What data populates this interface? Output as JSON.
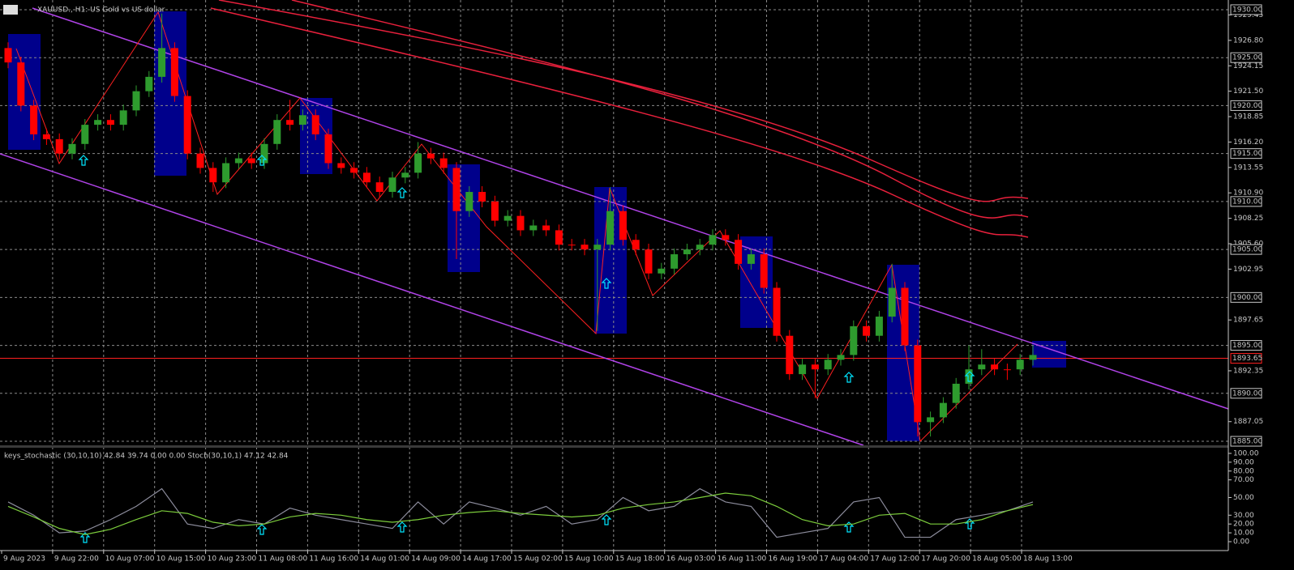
{
  "chart_data": {
    "type": "candlestick",
    "title": "XAUUSD., H1:  US Gold vs US dollar",
    "indicator_label": "keys_stochastic (30,10,10) 42.84 39.74 0.00 0.00 Stoch(30,10,1) 47.12 42.84",
    "up_color": "#2e9b2e",
    "down_color": "#ff0000",
    "ylim": [
      1884.58,
      1931.01
    ],
    "yticks": [
      {
        "value": 1929.45,
        "label": "1929.45"
      },
      {
        "value": 1926.8,
        "label": "1926.80"
      },
      {
        "value": 1924.15,
        "label": "1924.15"
      },
      {
        "value": 1921.5,
        "label": "1921.50"
      },
      {
        "value": 1918.85,
        "label": "1918.85"
      },
      {
        "value": 1916.2,
        "label": "1916.20"
      },
      {
        "value": 1913.55,
        "label": "1913.55"
      },
      {
        "value": 1910.9,
        "label": "1910.90"
      },
      {
        "value": 1908.25,
        "label": "1908.25"
      },
      {
        "value": 1905.6,
        "label": "1905.60"
      },
      {
        "value": 1902.95,
        "label": "1902.95"
      },
      {
        "value": 1897.65,
        "label": "1897.65"
      },
      {
        "value": 1892.35,
        "label": "1892.35"
      },
      {
        "value": 1887.05,
        "label": "1887.05"
      }
    ],
    "level_ticks": [
      {
        "value": 1930,
        "label": "1930.00"
      },
      {
        "value": 1925,
        "label": "1925.00"
      },
      {
        "value": 1920,
        "label": "1920.00"
      },
      {
        "value": 1915,
        "label": "1915.00"
      },
      {
        "value": 1910,
        "label": "1910.00"
      },
      {
        "value": 1905,
        "label": "1905.00"
      },
      {
        "value": 1900,
        "label": "1900.00"
      },
      {
        "value": 1895,
        "label": "1895.00"
      },
      {
        "value": 1890,
        "label": "1890.00"
      },
      {
        "value": 1885,
        "label": "1885.00"
      }
    ],
    "current_price": {
      "value": 1893.65,
      "label": "1893.65"
    },
    "time_labels": [
      "9 Aug 2023",
      "9 Aug 22:00",
      "10 Aug 07:00",
      "10 Aug 15:00",
      "10 Aug 23:00",
      "11 Aug 08:00",
      "11 Aug 16:00",
      "14 Aug 01:00",
      "14 Aug 09:00",
      "14 Aug 17:00",
      "15 Aug 02:00",
      "15 Aug 10:00",
      "15 Aug 18:00",
      "16 Aug 03:00",
      "16 Aug 11:00",
      "16 Aug 19:00",
      "17 Aug 04:00",
      "17 Aug 12:00",
      "17 Aug 20:00",
      "18 Aug 05:00",
      "18 Aug 13:00"
    ],
    "ohlc": [
      [
        1926,
        1926.6,
        1923.9,
        1924.5
      ],
      [
        1924.5,
        1925.1,
        1919.4,
        1920
      ],
      [
        1920,
        1920.6,
        1916.4,
        1917
      ],
      [
        1917,
        1917.6,
        1915.9,
        1916.5
      ],
      [
        1916.5,
        1917.1,
        1914.4,
        1915
      ],
      [
        1915,
        1916.6,
        1914.4,
        1916
      ],
      [
        1916,
        1918.6,
        1915.4,
        1918
      ],
      [
        1918,
        1919.1,
        1917.4,
        1918.5
      ],
      [
        1918.5,
        1919.1,
        1917.4,
        1918
      ],
      [
        1918,
        1920.1,
        1917.4,
        1919.5
      ],
      [
        1919.5,
        1922.1,
        1918.9,
        1921.5
      ],
      [
        1921.5,
        1923.6,
        1920.9,
        1923
      ],
      [
        1923,
        1929.6,
        1922.4,
        1926
      ],
      [
        1926,
        1926.6,
        1920.4,
        1921
      ],
      [
        1921,
        1921.6,
        1914.4,
        1915
      ],
      [
        1915,
        1915.6,
        1912.9,
        1913.5
      ],
      [
        1913.5,
        1914.1,
        1911,
        1912
      ],
      [
        1912,
        1914.6,
        1911.4,
        1914
      ],
      [
        1914,
        1915.1,
        1913.4,
        1914.5
      ],
      [
        1914.5,
        1915.1,
        1913.4,
        1914
      ],
      [
        1914,
        1916.6,
        1913.4,
        1916
      ],
      [
        1916,
        1919.1,
        1915.4,
        1918.5
      ],
      [
        1918.5,
        1920.6,
        1917.4,
        1918
      ],
      [
        1918,
        1919.6,
        1917.4,
        1919
      ],
      [
        1919,
        1919.6,
        1916.4,
        1917
      ],
      [
        1917,
        1917.6,
        1913.4,
        1914
      ],
      [
        1914,
        1914.6,
        1912.9,
        1913.5
      ],
      [
        1913.5,
        1914.1,
        1912.4,
        1913
      ],
      [
        1913,
        1913.6,
        1911.4,
        1912
      ],
      [
        1912,
        1912.6,
        1910.4,
        1911
      ],
      [
        1911,
        1913.1,
        1910.4,
        1912.5
      ],
      [
        1912.5,
        1913.6,
        1911.9,
        1913
      ],
      [
        1913,
        1916.2,
        1912.4,
        1915
      ],
      [
        1915,
        1915.6,
        1913.9,
        1914.5
      ],
      [
        1914.5,
        1915.1,
        1912.9,
        1913.5
      ],
      [
        1913.5,
        1914.1,
        1904,
        1909
      ],
      [
        1909,
        1911.6,
        1908.4,
        1911
      ],
      [
        1911,
        1911.6,
        1909.4,
        1910
      ],
      [
        1910,
        1910.6,
        1907.4,
        1908
      ],
      [
        1908,
        1909.1,
        1907.4,
        1908.5
      ],
      [
        1908.5,
        1909.1,
        1906.4,
        1907
      ],
      [
        1907,
        1908.1,
        1906.4,
        1907.5
      ],
      [
        1907.5,
        1908.1,
        1906.4,
        1907
      ],
      [
        1907,
        1907.6,
        1904.9,
        1905.5
      ],
      [
        1905.5,
        1906.1,
        1904.9,
        1905.5
      ],
      [
        1905.5,
        1906.1,
        1904.4,
        1905
      ],
      [
        1905,
        1906.1,
        1896.5,
        1905.5
      ],
      [
        1905.5,
        1911.5,
        1904.9,
        1909
      ],
      [
        1909,
        1909.6,
        1905.4,
        1906
      ],
      [
        1906,
        1906.6,
        1904.4,
        1905
      ],
      [
        1905,
        1905.6,
        1901.9,
        1902.5
      ],
      [
        1902.5,
        1903.6,
        1901.9,
        1903
      ],
      [
        1903,
        1905.1,
        1902.4,
        1904.5
      ],
      [
        1904.5,
        1905.6,
        1903.9,
        1905
      ],
      [
        1905,
        1906.1,
        1904.4,
        1905.5
      ],
      [
        1905.5,
        1907.1,
        1904.9,
        1906.5
      ],
      [
        1906.5,
        1907.1,
        1905.4,
        1906
      ],
      [
        1906,
        1906.6,
        1902.9,
        1903.5
      ],
      [
        1903.5,
        1905.1,
        1902.9,
        1904.5
      ],
      [
        1904.5,
        1905.1,
        1900.4,
        1901
      ],
      [
        1901,
        1901.6,
        1895.4,
        1896
      ],
      [
        1896,
        1896.6,
        1891.4,
        1892
      ],
      [
        1892,
        1893.6,
        1891.4,
        1893
      ],
      [
        1893,
        1893.6,
        1889.5,
        1892.5
      ],
      [
        1892.5,
        1894.1,
        1891.9,
        1893.5
      ],
      [
        1893.5,
        1894.6,
        1892.9,
        1894
      ],
      [
        1894,
        1897.6,
        1893.4,
        1897
      ],
      [
        1897,
        1897.6,
        1895.4,
        1896
      ],
      [
        1896,
        1898.6,
        1895.4,
        1898
      ],
      [
        1898,
        1903.5,
        1897.4,
        1901
      ],
      [
        1901,
        1901.6,
        1894.4,
        1895
      ],
      [
        1895,
        1895.6,
        1885.5,
        1887
      ],
      [
        1887,
        1888.1,
        1885.5,
        1887.5
      ],
      [
        1887.5,
        1889.6,
        1886.9,
        1889
      ],
      [
        1889,
        1891.6,
        1888.4,
        1891
      ],
      [
        1891,
        1895,
        1890.4,
        1892.5
      ],
      [
        1892.5,
        1894.6,
        1891.9,
        1893
      ],
      [
        1893,
        1893.6,
        1891.9,
        1892.5
      ],
      [
        1892.5,
        1893.1,
        1891.4,
        1892.5
      ],
      [
        1892.5,
        1894.1,
        1891.9,
        1893.5
      ],
      [
        1893.5,
        1895,
        1892.9,
        1894
      ]
    ],
    "stochastic": {
      "ylim": [
        -10.1,
        106.4
      ],
      "yticks": [
        {
          "value": 100,
          "label": "100.00"
        },
        {
          "value": 90,
          "label": "90.00"
        },
        {
          "value": 80,
          "label": "80.00"
        },
        {
          "value": 70,
          "label": "70.00"
        },
        {
          "value": 50,
          "label": "50.00"
        },
        {
          "value": 30,
          "label": "30.00"
        },
        {
          "value": 20,
          "label": "20.00"
        },
        {
          "value": 10,
          "label": "10.00"
        },
        {
          "value": 0,
          "label": "0.00"
        }
      ],
      "series": [
        {
          "color": "#8c8c9c",
          "values": [
            45,
            30,
            10,
            12,
            25,
            40,
            60,
            20,
            15,
            25,
            20,
            38,
            30,
            25,
            20,
            15,
            45,
            20,
            45,
            38,
            30,
            40,
            20,
            25,
            50,
            35,
            40,
            60,
            45,
            40,
            5,
            10,
            15,
            45,
            50,
            5,
            5,
            25,
            30,
            35,
            45
          ]
        },
        {
          "color": "#7ccd3c",
          "values": [
            40,
            28,
            15,
            8,
            14,
            25,
            35,
            32,
            22,
            18,
            20,
            28,
            32,
            30,
            25,
            22,
            25,
            30,
            33,
            35,
            32,
            30,
            28,
            30,
            38,
            42,
            45,
            50,
            55,
            52,
            40,
            25,
            18,
            20,
            30,
            32,
            20,
            20,
            25,
            35,
            42
          ]
        }
      ]
    }
  }
}
